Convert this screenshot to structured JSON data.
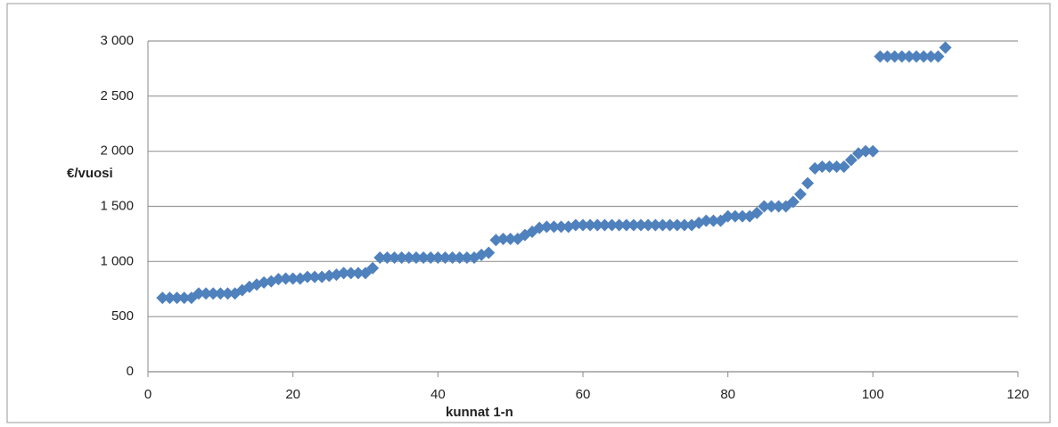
{
  "chart_data": {
    "type": "scatter",
    "ylabel": "€/vuosi",
    "xlabel": "kunnat 1-n",
    "x": [
      2,
      3,
      4,
      5,
      6,
      7,
      8,
      9,
      10,
      11,
      12,
      13,
      14,
      15,
      16,
      17,
      18,
      19,
      20,
      21,
      22,
      23,
      24,
      25,
      26,
      27,
      28,
      29,
      30,
      31,
      32,
      33,
      34,
      35,
      36,
      37,
      38,
      39,
      40,
      41,
      42,
      43,
      44,
      45,
      46,
      47,
      48,
      49,
      50,
      51,
      52,
      53,
      54,
      55,
      56,
      57,
      58,
      59,
      60,
      61,
      62,
      63,
      64,
      65,
      66,
      67,
      68,
      69,
      70,
      71,
      72,
      73,
      74,
      75,
      76,
      77,
      78,
      79,
      80,
      81,
      82,
      83,
      84,
      85,
      86,
      87,
      88,
      89,
      90,
      91,
      92,
      93,
      94,
      95,
      96,
      97,
      98,
      99,
      100,
      101,
      102,
      103,
      104,
      105,
      106,
      107,
      108,
      109,
      110
    ],
    "values": [
      670,
      670,
      670,
      670,
      670,
      710,
      710,
      710,
      710,
      710,
      710,
      740,
      770,
      790,
      810,
      820,
      840,
      845,
      845,
      845,
      860,
      860,
      860,
      870,
      880,
      895,
      895,
      895,
      895,
      940,
      1035,
      1035,
      1035,
      1035,
      1035,
      1035,
      1035,
      1035,
      1035,
      1035,
      1035,
      1035,
      1035,
      1035,
      1060,
      1080,
      1195,
      1205,
      1205,
      1205,
      1240,
      1270,
      1305,
      1315,
      1315,
      1315,
      1315,
      1330,
      1330,
      1330,
      1330,
      1330,
      1330,
      1330,
      1330,
      1330,
      1330,
      1330,
      1330,
      1330,
      1330,
      1330,
      1330,
      1330,
      1350,
      1370,
      1370,
      1370,
      1410,
      1410,
      1410,
      1410,
      1440,
      1500,
      1500,
      1500,
      1500,
      1540,
      1610,
      1710,
      1845,
      1860,
      1860,
      1860,
      1860,
      1920,
      1980,
      2000,
      2000,
      2860,
      2860,
      2860,
      2860,
      2860,
      2860,
      2860,
      2860,
      2860,
      2940
    ],
    "color": "#4f81bd",
    "xlim": [
      0,
      120
    ],
    "xticks": [
      0,
      20,
      40,
      60,
      80,
      100,
      120
    ],
    "ylim": [
      0,
      3000
    ],
    "yticks": [
      0,
      500,
      {
        "value": 1000,
        "label": "1 000"
      },
      {
        "value": 1500,
        "label": "1 500"
      },
      {
        "value": 2000,
        "label": "2 000"
      },
      {
        "value": 2500,
        "label": "2 500"
      },
      {
        "value": 3000,
        "label": "3 000"
      }
    ],
    "grid": true
  }
}
